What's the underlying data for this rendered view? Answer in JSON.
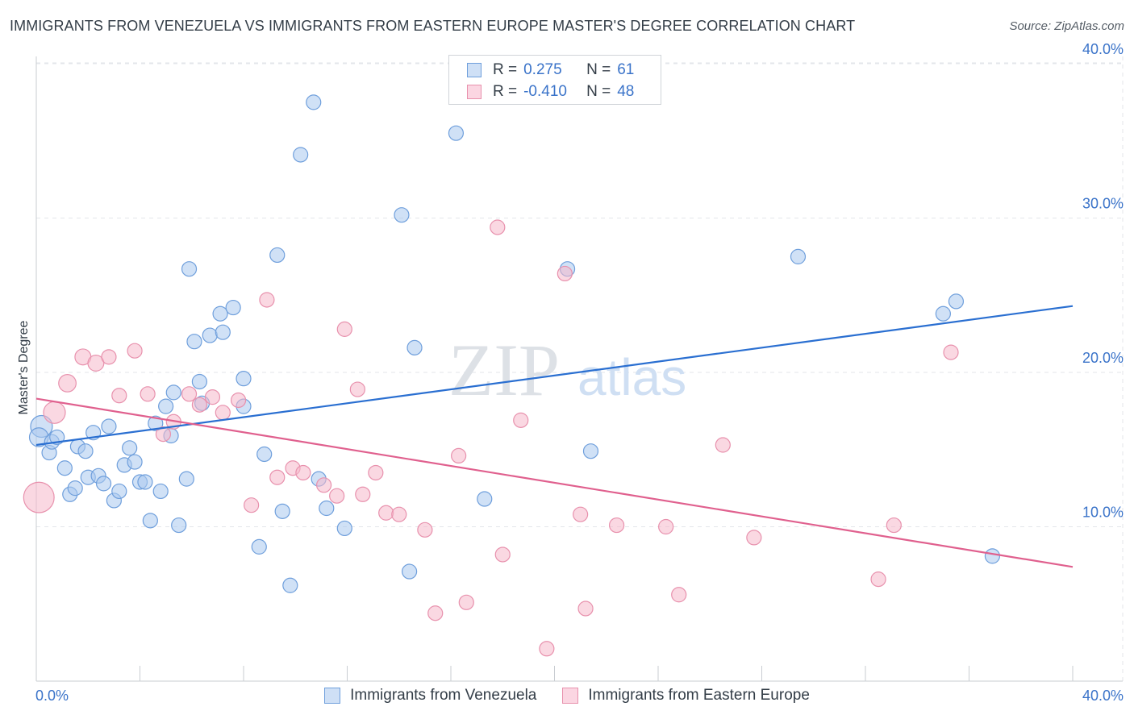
{
  "header": {
    "title": "IMMIGRANTS FROM VENEZUELA VS IMMIGRANTS FROM EASTERN EUROPE MASTER'S DEGREE CORRELATION CHART",
    "source": "Source: ZipAtlas.com"
  },
  "watermark": {
    "zip": "ZIP",
    "atlas": "atlas"
  },
  "legend": {
    "rows": [
      {
        "r_label": "R =",
        "r_value": "0.275",
        "n_label": "N =",
        "n_value": "61",
        "color": "#a9c8ef"
      },
      {
        "r_label": "R =",
        "r_value": "-0.410",
        "n_label": "N =",
        "n_value": "48",
        "color": "#f5b8cb"
      }
    ]
  },
  "bottom_legend": {
    "series_a": "Immigrants from Venezuela",
    "series_b": "Immigrants from Eastern Europe"
  },
  "colors": {
    "blue_fill": "#a9c8ef",
    "blue_stroke": "#6f9fdc",
    "blue_line": "#2a6fd1",
    "pink_fill": "#f5b8cb",
    "pink_stroke": "#e891ad",
    "pink_line": "#e0608e",
    "grid": "#e3e6ea",
    "tick_text": "#3a73c9"
  },
  "chart_data": {
    "type": "scatter",
    "title": "IMMIGRANTS FROM VENEZUELA VS IMMIGRANTS FROM EASTERN EUROPE MASTER'S DEGREE CORRELATION CHART",
    "xlabel": "",
    "ylabel": "Master's Degree",
    "xlim": [
      0,
      40
    ],
    "ylim": [
      0,
      42
    ],
    "x_tick_labels": [
      "0.0%",
      "40.0%"
    ],
    "y_ticks": [
      10,
      20,
      30,
      40
    ],
    "y_tick_labels": [
      "10.0%",
      "20.0%",
      "30.0%",
      "40.0%"
    ],
    "grid": true,
    "legend_position": "top-center",
    "series": [
      {
        "name": "Immigrants from Venezuela",
        "color": "#a9c8ef",
        "trend": {
          "x": [
            0,
            40
          ],
          "y": [
            15.3,
            24.3
          ]
        },
        "points": [
          {
            "x": 0.2,
            "y": 16.5,
            "s": 1.5
          },
          {
            "x": 0.1,
            "y": 15.8,
            "s": 1.3
          },
          {
            "x": 0.5,
            "y": 14.8,
            "s": 1
          },
          {
            "x": 0.6,
            "y": 15.5,
            "s": 1
          },
          {
            "x": 0.8,
            "y": 15.8,
            "s": 1
          },
          {
            "x": 1.1,
            "y": 13.8,
            "s": 1
          },
          {
            "x": 1.3,
            "y": 12.1,
            "s": 1
          },
          {
            "x": 1.5,
            "y": 12.5,
            "s": 1
          },
          {
            "x": 1.6,
            "y": 15.2,
            "s": 1
          },
          {
            "x": 1.9,
            "y": 14.9,
            "s": 1
          },
          {
            "x": 2.0,
            "y": 13.2,
            "s": 1
          },
          {
            "x": 2.2,
            "y": 16.1,
            "s": 1
          },
          {
            "x": 2.4,
            "y": 13.3,
            "s": 1
          },
          {
            "x": 2.6,
            "y": 12.8,
            "s": 1
          },
          {
            "x": 2.8,
            "y": 16.5,
            "s": 1
          },
          {
            "x": 3.0,
            "y": 11.7,
            "s": 1
          },
          {
            "x": 3.2,
            "y": 12.3,
            "s": 1
          },
          {
            "x": 3.4,
            "y": 14.0,
            "s": 1
          },
          {
            "x": 3.6,
            "y": 15.1,
            "s": 1
          },
          {
            "x": 3.8,
            "y": 14.2,
            "s": 1
          },
          {
            "x": 4.0,
            "y": 12.9,
            "s": 1
          },
          {
            "x": 4.2,
            "y": 12.9,
            "s": 1
          },
          {
            "x": 4.4,
            "y": 10.4,
            "s": 1
          },
          {
            "x": 4.6,
            "y": 16.7,
            "s": 1
          },
          {
            "x": 4.8,
            "y": 12.3,
            "s": 1
          },
          {
            "x": 5.0,
            "y": 17.8,
            "s": 1
          },
          {
            "x": 5.2,
            "y": 15.9,
            "s": 1
          },
          {
            "x": 5.3,
            "y": 18.7,
            "s": 1
          },
          {
            "x": 5.5,
            "y": 10.1,
            "s": 1
          },
          {
            "x": 5.8,
            "y": 13.1,
            "s": 1
          },
          {
            "x": 5.9,
            "y": 26.7,
            "s": 1
          },
          {
            "x": 6.1,
            "y": 22.0,
            "s": 1
          },
          {
            "x": 6.3,
            "y": 19.4,
            "s": 1
          },
          {
            "x": 6.4,
            "y": 18.0,
            "s": 1
          },
          {
            "x": 6.7,
            "y": 22.4,
            "s": 1
          },
          {
            "x": 7.1,
            "y": 23.8,
            "s": 1
          },
          {
            "x": 7.2,
            "y": 22.6,
            "s": 1
          },
          {
            "x": 7.6,
            "y": 24.2,
            "s": 1
          },
          {
            "x": 8.0,
            "y": 19.6,
            "s": 1
          },
          {
            "x": 8.0,
            "y": 17.8,
            "s": 1
          },
          {
            "x": 8.8,
            "y": 14.7,
            "s": 1
          },
          {
            "x": 8.6,
            "y": 8.7,
            "s": 1
          },
          {
            "x": 9.3,
            "y": 27.6,
            "s": 1
          },
          {
            "x": 9.5,
            "y": 11.0,
            "s": 1
          },
          {
            "x": 9.8,
            "y": 6.2,
            "s": 1
          },
          {
            "x": 10.2,
            "y": 34.1,
            "s": 1
          },
          {
            "x": 10.7,
            "y": 37.5,
            "s": 1
          },
          {
            "x": 10.9,
            "y": 13.1,
            "s": 1
          },
          {
            "x": 11.2,
            "y": 11.2,
            "s": 1
          },
          {
            "x": 11.9,
            "y": 9.9,
            "s": 1
          },
          {
            "x": 14.1,
            "y": 30.2,
            "s": 1
          },
          {
            "x": 14.4,
            "y": 7.1,
            "s": 1
          },
          {
            "x": 14.6,
            "y": 21.6,
            "s": 1
          },
          {
            "x": 16.2,
            "y": 35.5,
            "s": 1
          },
          {
            "x": 17.3,
            "y": 11.8,
            "s": 1
          },
          {
            "x": 20.5,
            "y": 26.7,
            "s": 1
          },
          {
            "x": 21.4,
            "y": 14.9,
            "s": 1
          },
          {
            "x": 29.4,
            "y": 27.5,
            "s": 1
          },
          {
            "x": 35.0,
            "y": 23.8,
            "s": 1
          },
          {
            "x": 35.5,
            "y": 24.6,
            "s": 1
          },
          {
            "x": 36.9,
            "y": 8.1,
            "s": 1
          }
        ]
      },
      {
        "name": "Immigrants from Eastern Europe",
        "color": "#f5b8cb",
        "trend": {
          "x": [
            0,
            40
          ],
          "y": [
            18.3,
            7.4
          ]
        },
        "points": [
          {
            "x": 0.1,
            "y": 11.9,
            "s": 2.1
          },
          {
            "x": 0.7,
            "y": 17.4,
            "s": 1.5
          },
          {
            "x": 1.2,
            "y": 19.3,
            "s": 1.2
          },
          {
            "x": 1.8,
            "y": 21.0,
            "s": 1.1
          },
          {
            "x": 2.3,
            "y": 20.6,
            "s": 1.1
          },
          {
            "x": 2.8,
            "y": 21.0,
            "s": 1
          },
          {
            "x": 3.2,
            "y": 18.5,
            "s": 1
          },
          {
            "x": 3.8,
            "y": 21.4,
            "s": 1
          },
          {
            "x": 4.3,
            "y": 18.6,
            "s": 1
          },
          {
            "x": 4.9,
            "y": 16.0,
            "s": 1
          },
          {
            "x": 5.3,
            "y": 16.8,
            "s": 1
          },
          {
            "x": 5.9,
            "y": 18.6,
            "s": 1
          },
          {
            "x": 6.3,
            "y": 17.9,
            "s": 1
          },
          {
            "x": 6.8,
            "y": 18.4,
            "s": 1
          },
          {
            "x": 7.2,
            "y": 17.4,
            "s": 1
          },
          {
            "x": 7.8,
            "y": 18.2,
            "s": 1
          },
          {
            "x": 8.3,
            "y": 11.4,
            "s": 1
          },
          {
            "x": 8.9,
            "y": 24.7,
            "s": 1
          },
          {
            "x": 9.3,
            "y": 13.2,
            "s": 1
          },
          {
            "x": 9.9,
            "y": 13.8,
            "s": 1
          },
          {
            "x": 10.3,
            "y": 13.5,
            "s": 1
          },
          {
            "x": 11.1,
            "y": 12.7,
            "s": 1
          },
          {
            "x": 11.6,
            "y": 12.0,
            "s": 1
          },
          {
            "x": 11.9,
            "y": 22.8,
            "s": 1
          },
          {
            "x": 12.6,
            "y": 12.1,
            "s": 1
          },
          {
            "x": 12.4,
            "y": 18.9,
            "s": 1
          },
          {
            "x": 13.1,
            "y": 13.5,
            "s": 1
          },
          {
            "x": 13.5,
            "y": 10.9,
            "s": 1
          },
          {
            "x": 14.0,
            "y": 10.8,
            "s": 1
          },
          {
            "x": 15.4,
            "y": 4.4,
            "s": 1
          },
          {
            "x": 15.0,
            "y": 9.8,
            "s": 1
          },
          {
            "x": 16.3,
            "y": 14.6,
            "s": 1
          },
          {
            "x": 16.6,
            "y": 5.1,
            "s": 1
          },
          {
            "x": 17.8,
            "y": 29.4,
            "s": 1
          },
          {
            "x": 18.0,
            "y": 8.2,
            "s": 1
          },
          {
            "x": 18.7,
            "y": 16.9,
            "s": 1
          },
          {
            "x": 19.7,
            "y": 2.1,
            "s": 1
          },
          {
            "x": 20.4,
            "y": 26.4,
            "s": 1
          },
          {
            "x": 21.0,
            "y": 10.8,
            "s": 1
          },
          {
            "x": 21.2,
            "y": 4.7,
            "s": 1
          },
          {
            "x": 22.4,
            "y": 10.1,
            "s": 1
          },
          {
            "x": 24.3,
            "y": 10.0,
            "s": 1
          },
          {
            "x": 24.8,
            "y": 5.6,
            "s": 1
          },
          {
            "x": 26.5,
            "y": 15.3,
            "s": 1
          },
          {
            "x": 27.7,
            "y": 9.3,
            "s": 1
          },
          {
            "x": 32.5,
            "y": 6.6,
            "s": 1
          },
          {
            "x": 33.1,
            "y": 10.1,
            "s": 1
          },
          {
            "x": 35.3,
            "y": 21.3,
            "s": 1
          }
        ]
      }
    ]
  }
}
